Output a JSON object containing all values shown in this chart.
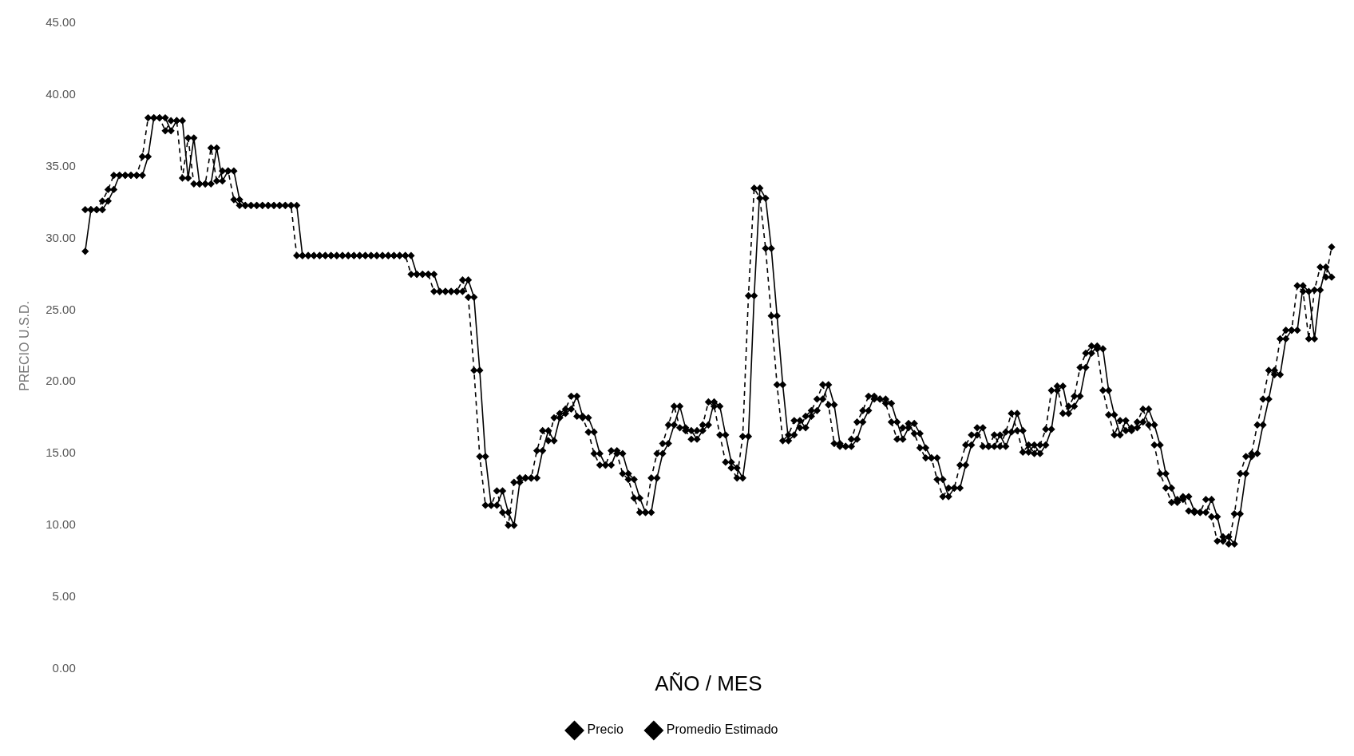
{
  "chart_data": {
    "type": "line",
    "ylabel": "PRECIO U.S.D.",
    "xlabel": "AÑO / MES",
    "categories": [
      null,
      null,
      null,
      null,
      null,
      null,
      null,
      null,
      null,
      null,
      null,
      null,
      null,
      null,
      null,
      null,
      null,
      null,
      null,
      null,
      null,
      null,
      null,
      null,
      null,
      null,
      null,
      null,
      null,
      null,
      null,
      null,
      null,
      null,
      null,
      null,
      null,
      null,
      null,
      null,
      null,
      null,
      null,
      null,
      null,
      null,
      null,
      null,
      null,
      null,
      null,
      null,
      null,
      null,
      null,
      null,
      null,
      null,
      null,
      null,
      null,
      null,
      null,
      null,
      null,
      null,
      null,
      null,
      null,
      null,
      null,
      null,
      null,
      null,
      null,
      null,
      null,
      null,
      null,
      null,
      null,
      null,
      null,
      null,
      null,
      null,
      null,
      null,
      null,
      null,
      null,
      null,
      null,
      null,
      null,
      null,
      null,
      null,
      null,
      null,
      null,
      null,
      null,
      null,
      null,
      null,
      null,
      null,
      null,
      null,
      null,
      null,
      null,
      null,
      null,
      null,
      null,
      null,
      null,
      null,
      null,
      null,
      null,
      null,
      null,
      null,
      null,
      null,
      null,
      null,
      null,
      null,
      null,
      null,
      null,
      null,
      null,
      null,
      null,
      null,
      null,
      null,
      null,
      null,
      null,
      null,
      null,
      null,
      null,
      null,
      null,
      null,
      null,
      null,
      null,
      null,
      null,
      null,
      null,
      null,
      null,
      null,
      null,
      null,
      null,
      null,
      null,
      null,
      null,
      null,
      null,
      null,
      null,
      null,
      null,
      null,
      null,
      null,
      null,
      null,
      null,
      null,
      null,
      null,
      null,
      null,
      null,
      null,
      null,
      null,
      null,
      null,
      null,
      null,
      null,
      null,
      null,
      null,
      null,
      null,
      null,
      null,
      null,
      null,
      null,
      null,
      null,
      null,
      null,
      null,
      null,
      null,
      null,
      null,
      null,
      null,
      null,
      null,
      null
    ],
    "series": [
      {
        "name": "Precio",
        "color": "#000000",
        "line_style": "dashed",
        "values": [
          32,
          32,
          32,
          32.6,
          33.4,
          34.4,
          34.4,
          34.4,
          34.4,
          34.4,
          35.7,
          38.4,
          38.4,
          38.4,
          37.5,
          38.2,
          38.2,
          34.2,
          37,
          33.8,
          33.8,
          33.8,
          36.3,
          34,
          34.7,
          34.7,
          32.7,
          32.3,
          32.3,
          32.3,
          32.3,
          32.3,
          32.3,
          32.3,
          32.3,
          32.3,
          32.3,
          28.8,
          28.8,
          28.8,
          28.8,
          28.8,
          28.8,
          28.8,
          28.8,
          28.8,
          28.8,
          28.8,
          28.8,
          28.8,
          28.8,
          28.8,
          28.8,
          28.8,
          28.8,
          28.8,
          28.8,
          27.5,
          27.5,
          27.5,
          27.5,
          26.3,
          26.3,
          26.3,
          26.3,
          26.3,
          27.1,
          25.9,
          20.8,
          14.8,
          11.4,
          11.4,
          12.4,
          10.9,
          10,
          13,
          13.3,
          13.3,
          13.3,
          15.2,
          16.6,
          15.9,
          17.5,
          17.8,
          18.1,
          19,
          17.6,
          17.5,
          16.5,
          15,
          14.2,
          14.2,
          15.2,
          15,
          13.6,
          13.2,
          11.9,
          10.9,
          10.9,
          13.3,
          15,
          15.7,
          17,
          18.3,
          16.8,
          16.6,
          16,
          16.6,
          17,
          18.6,
          18.3,
          16.3,
          14.4,
          14,
          13.3,
          16.2,
          26,
          33.5,
          32.8,
          29.3,
          24.6,
          19.8,
          15.9,
          16.3,
          17.3,
          16.8,
          17.6,
          18,
          18.8,
          19.8,
          18.4,
          15.7,
          15.5,
          15.5,
          16,
          17.2,
          18,
          19,
          18.8,
          18.8,
          18.5,
          17.2,
          16,
          16.8,
          17.1,
          16.4,
          15.4,
          14.7,
          14.7,
          13.2,
          12,
          12.6,
          12.6,
          14.2,
          15.6,
          16.3,
          16.8,
          15.5,
          15.5,
          16.3,
          15.5,
          16.5,
          17.8,
          16.6,
          15.1,
          15.6,
          15,
          15.6,
          16.7,
          19.4,
          19.7,
          17.8,
          18.3,
          19,
          21,
          22,
          22.5,
          22.3,
          19.4,
          17.7,
          16.3,
          17.3,
          16.6,
          16.8,
          17.2,
          18.1,
          17,
          15.6,
          13.6,
          12.6,
          11.6,
          11.8,
          12,
          11,
          10.9,
          10.9,
          11.8,
          10.6,
          8.9,
          9.2,
          8.7,
          10.8,
          13.6,
          14.8,
          15,
          17,
          18.8,
          20.8,
          20.5,
          23,
          23.6,
          23.6,
          26.7,
          26.3,
          23,
          26.4,
          28,
          27.3,
          29.4
        ]
      },
      {
        "name": "Promedio Estimado",
        "color": "#000000",
        "line_style": "solid",
        "values": [
          29.1,
          32,
          32,
          32,
          32.6,
          33.4,
          34.4,
          34.4,
          34.4,
          34.4,
          34.4,
          35.7,
          38.4,
          38.4,
          38.4,
          37.5,
          38.2,
          38.2,
          34.2,
          37,
          33.8,
          33.8,
          33.8,
          36.3,
          34,
          34.7,
          34.7,
          32.7,
          32.3,
          32.3,
          32.3,
          32.3,
          32.3,
          32.3,
          32.3,
          32.3,
          32.3,
          32.3,
          28.8,
          28.8,
          28.8,
          28.8,
          28.8,
          28.8,
          28.8,
          28.8,
          28.8,
          28.8,
          28.8,
          28.8,
          28.8,
          28.8,
          28.8,
          28.8,
          28.8,
          28.8,
          28.8,
          28.8,
          27.5,
          27.5,
          27.5,
          27.5,
          26.3,
          26.3,
          26.3,
          26.3,
          26.3,
          27.1,
          25.9,
          20.8,
          14.8,
          11.4,
          11.4,
          12.4,
          10.9,
          10,
          13,
          13.3,
          13.3,
          13.3,
          15.2,
          16.6,
          15.9,
          17.5,
          17.8,
          18.1,
          19,
          17.6,
          17.5,
          16.5,
          15,
          14.2,
          14.2,
          15.2,
          15,
          13.6,
          13.2,
          11.9,
          10.9,
          10.9,
          13.3,
          15,
          15.7,
          17,
          18.3,
          16.8,
          16.6,
          16,
          16.6,
          17,
          18.6,
          18.3,
          16.3,
          14.4,
          14,
          13.3,
          16.2,
          26,
          33.5,
          32.8,
          29.3,
          24.6,
          19.8,
          15.9,
          16.3,
          17.3,
          16.8,
          17.6,
          18,
          18.8,
          19.8,
          18.4,
          15.7,
          15.5,
          15.5,
          16,
          17.2,
          18,
          19,
          18.8,
          18.8,
          18.5,
          17.2,
          16,
          16.8,
          17.1,
          16.4,
          15.4,
          14.7,
          14.7,
          13.2,
          12,
          12.6,
          12.6,
          14.2,
          15.6,
          16.3,
          16.8,
          15.5,
          15.5,
          16.3,
          15.5,
          16.5,
          17.8,
          16.6,
          15.1,
          15.6,
          15,
          15.6,
          16.7,
          19.4,
          19.7,
          17.8,
          18.3,
          19,
          21,
          22,
          22.5,
          22.3,
          19.4,
          17.7,
          16.3,
          17.3,
          16.6,
          16.8,
          17.2,
          18.1,
          17,
          15.6,
          13.6,
          12.6,
          11.6,
          11.8,
          12,
          11,
          10.9,
          10.9,
          11.8,
          10.6,
          8.9,
          9.2,
          8.7,
          10.8,
          13.6,
          14.8,
          15,
          17,
          18.8,
          20.8,
          20.5,
          23,
          23.6,
          23.6,
          26.7,
          26.3,
          23,
          26.4,
          28,
          27.3
        ]
      }
    ],
    "ylim": [
      0,
      45
    ],
    "yticks": [
      {
        "value": 0,
        "label": "0.00"
      },
      {
        "value": 5,
        "label": "5.00"
      },
      {
        "value": 10,
        "label": "10.00"
      },
      {
        "value": 15,
        "label": "15.00"
      },
      {
        "value": 20,
        "label": "20.00"
      },
      {
        "value": 25,
        "label": "25.00"
      },
      {
        "value": 30,
        "label": "30.00"
      },
      {
        "value": 35,
        "label": "35.00"
      },
      {
        "value": 40,
        "label": "40.00"
      },
      {
        "value": 45,
        "label": "45.00"
      }
    ],
    "tick_labels": "y",
    "grid": false,
    "legend": "bottom",
    "marker": "diamond"
  }
}
